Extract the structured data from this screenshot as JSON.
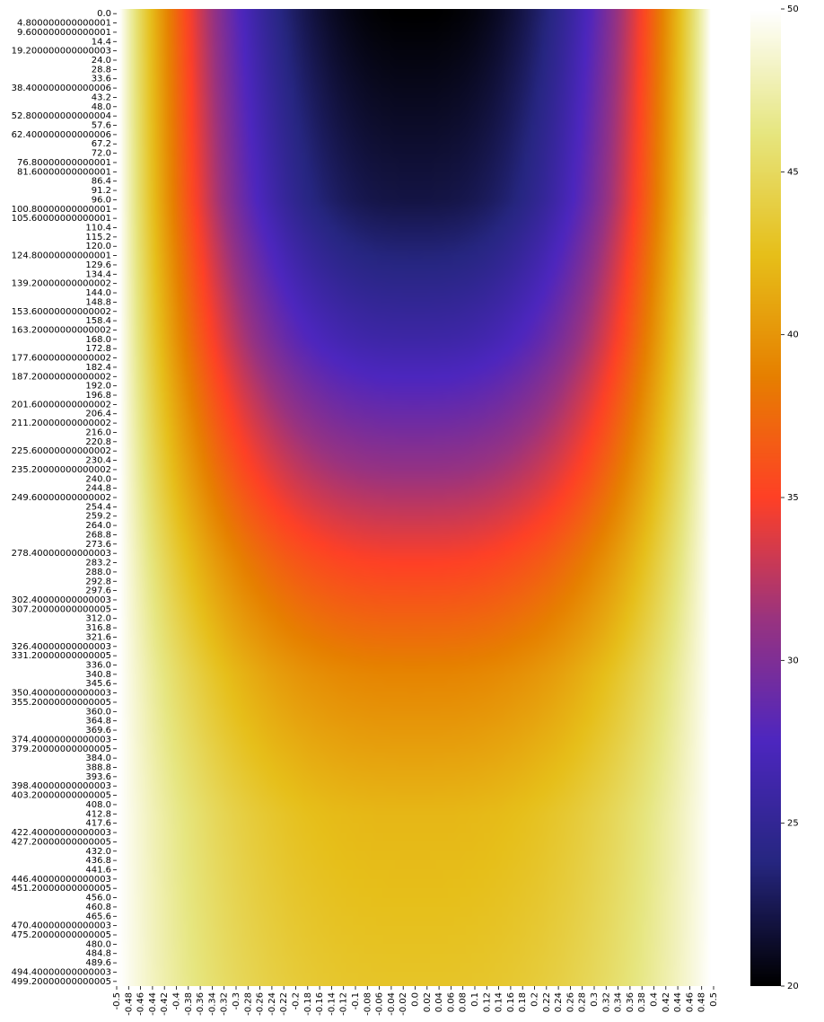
{
  "chart_data": {
    "type": "heatmap",
    "title": "",
    "xlabel": "",
    "ylabel": "",
    "colormap": "CMRmap",
    "colorbar": {
      "vmin": 20,
      "vmax": 50,
      "ticks": [
        20,
        25,
        30,
        35,
        40,
        45,
        50
      ]
    },
    "x_tick_labels": [
      "-0.5",
      "-0.48",
      "-0.46",
      "-0.44",
      "-0.42",
      "-0.4",
      "-0.38",
      "-0.36",
      "-0.34",
      "-0.32",
      "-0.3",
      "-0.28",
      "-0.26",
      "-0.24",
      "-0.22",
      "-0.2",
      "-0.18",
      "-0.16",
      "-0.14",
      "-0.12",
      "-0.1",
      "-0.08",
      "-0.06",
      "-0.04",
      "-0.02",
      "0.0",
      "0.02",
      "0.04",
      "0.06",
      "0.08",
      "0.1",
      "0.12",
      "0.14",
      "0.16",
      "0.18",
      "0.2",
      "0.22",
      "0.24",
      "0.26",
      "0.28",
      "0.3",
      "0.32",
      "0.34",
      "0.36",
      "0.38",
      "0.4",
      "0.42",
      "0.44",
      "0.46",
      "0.48",
      "0.5"
    ],
    "y_tick_labels": [
      "0.0",
      "4.800000000000001",
      "9.600000000000001",
      "14.4",
      "19.200000000000003",
      "24.0",
      "28.8",
      "33.6",
      "38.400000000000006",
      "43.2",
      "48.0",
      "52.800000000000004",
      "57.6",
      "62.400000000000006",
      "67.2",
      "72.0",
      "76.80000000000001",
      "81.60000000000001",
      "86.4",
      "91.2",
      "96.0",
      "100.80000000000001",
      "105.60000000000001",
      "110.4",
      "115.2",
      "120.0",
      "124.80000000000001",
      "129.6",
      "134.4",
      "139.20000000000002",
      "144.0",
      "148.8",
      "153.60000000000002",
      "158.4",
      "163.20000000000002",
      "168.0",
      "172.8",
      "177.60000000000002",
      "182.4",
      "187.20000000000002",
      "192.0",
      "196.8",
      "201.60000000000002",
      "206.4",
      "211.20000000000002",
      "216.0",
      "220.8",
      "225.60000000000002",
      "230.4",
      "235.20000000000002",
      "240.0",
      "244.8",
      "249.60000000000002",
      "254.4",
      "259.2",
      "264.0",
      "268.8",
      "273.6",
      "278.40000000000003",
      "283.2",
      "288.0",
      "292.8",
      "297.6",
      "302.40000000000003",
      "307.20000000000005",
      "312.0",
      "316.8",
      "321.6",
      "326.40000000000003",
      "331.20000000000005",
      "336.0",
      "340.8",
      "345.6",
      "350.40000000000003",
      "355.20000000000005",
      "360.0",
      "364.8",
      "369.6",
      "374.40000000000003",
      "379.20000000000005",
      "384.0",
      "388.8",
      "393.6",
      "398.40000000000003",
      "403.20000000000005",
      "408.0",
      "412.8",
      "417.6",
      "422.40000000000003",
      "427.20000000000005",
      "432.0",
      "436.8",
      "441.6",
      "446.40000000000003",
      "451.20000000000005",
      "456.0",
      "460.8",
      "465.6",
      "470.40000000000003",
      "475.20000000000005",
      "480.0",
      "484.8",
      "489.6",
      "494.40000000000003",
      "499.20000000000005"
    ],
    "value_model": {
      "boundary_value": 50,
      "center_profile": [
        [
          0,
          20
        ],
        [
          96,
          22
        ],
        [
          168,
          26
        ],
        [
          235,
          31
        ],
        [
          283,
          35
        ],
        [
          340,
          39
        ],
        [
          412,
          42
        ],
        [
          499.2,
          43
        ]
      ],
      "edge_sharpness": 2.6
    }
  }
}
